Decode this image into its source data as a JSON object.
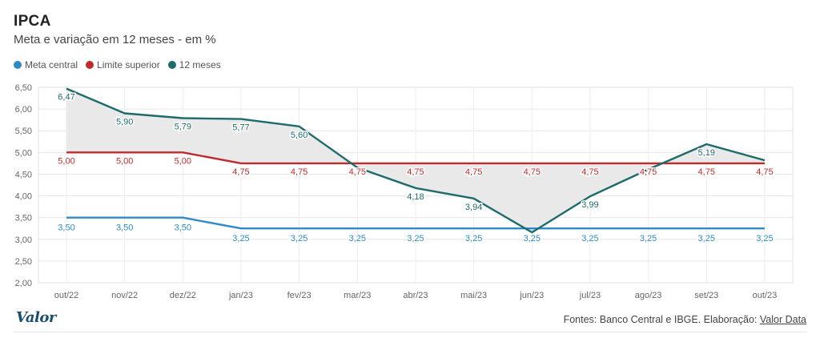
{
  "header": {
    "title": "IPCA",
    "subtitle": "Meta e variação em 12 meses - em %"
  },
  "legend": [
    {
      "label": "Meta central",
      "color": "#2e8bc6"
    },
    {
      "label": "Limite superior",
      "color": "#c02a2a"
    },
    {
      "label": "12 meses",
      "color": "#1d6b6b"
    }
  ],
  "footer": {
    "logo": "Valor",
    "source_prefix": "Fontes: Banco Central e IBGE. Elaboração: ",
    "source_link": "Valor Data"
  },
  "chart_data": {
    "type": "line",
    "categories": [
      "out/22",
      "nov/22",
      "dez/22",
      "jan/23",
      "fev/23",
      "mar/23",
      "abr/23",
      "mai/23",
      "jun/23",
      "jul/23",
      "ago/23",
      "set/23",
      "out/23"
    ],
    "ylim": [
      2.0,
      6.5
    ],
    "yticks": [
      "2,00",
      "2,50",
      "3,00",
      "3,50",
      "4,00",
      "4,50",
      "5,00",
      "5,50",
      "6,00",
      "6,50"
    ],
    "grid": true,
    "series": [
      {
        "name": "Meta central",
        "color": "#2e8bc6",
        "values": [
          3.5,
          3.5,
          3.5,
          3.25,
          3.25,
          3.25,
          3.25,
          3.25,
          3.25,
          3.25,
          3.25,
          3.25,
          3.25
        ],
        "labels": [
          "3,50",
          "3,50",
          "3,50",
          "3,25",
          "3,25",
          "3,25",
          "3,25",
          "3,25",
          "3,25",
          "3,25",
          "3,25",
          "3,25",
          "3,25"
        ]
      },
      {
        "name": "Limite superior",
        "color": "#c02a2a",
        "values": [
          5.0,
          5.0,
          5.0,
          4.75,
          4.75,
          4.75,
          4.75,
          4.75,
          4.75,
          4.75,
          4.75,
          4.75,
          4.75
        ],
        "labels": [
          "5,00",
          "5,00",
          "5,00",
          "4,75",
          "4,75",
          "4,75",
          "4,75",
          "4,75",
          "4,75",
          "4,75",
          "4,75",
          "4,75",
          "4,75"
        ]
      },
      {
        "name": "12 meses",
        "color": "#1d6b6b",
        "values": [
          6.47,
          5.9,
          5.79,
          5.77,
          5.6,
          4.65,
          4.18,
          3.94,
          3.16,
          3.99,
          4.61,
          5.19,
          4.82
        ],
        "labels": [
          "6,47",
          "5,90",
          "5,79",
          "5,77",
          "5,60",
          "",
          "4,18",
          "3,94",
          "",
          "3,99",
          "",
          "5,19",
          ""
        ]
      }
    ]
  }
}
